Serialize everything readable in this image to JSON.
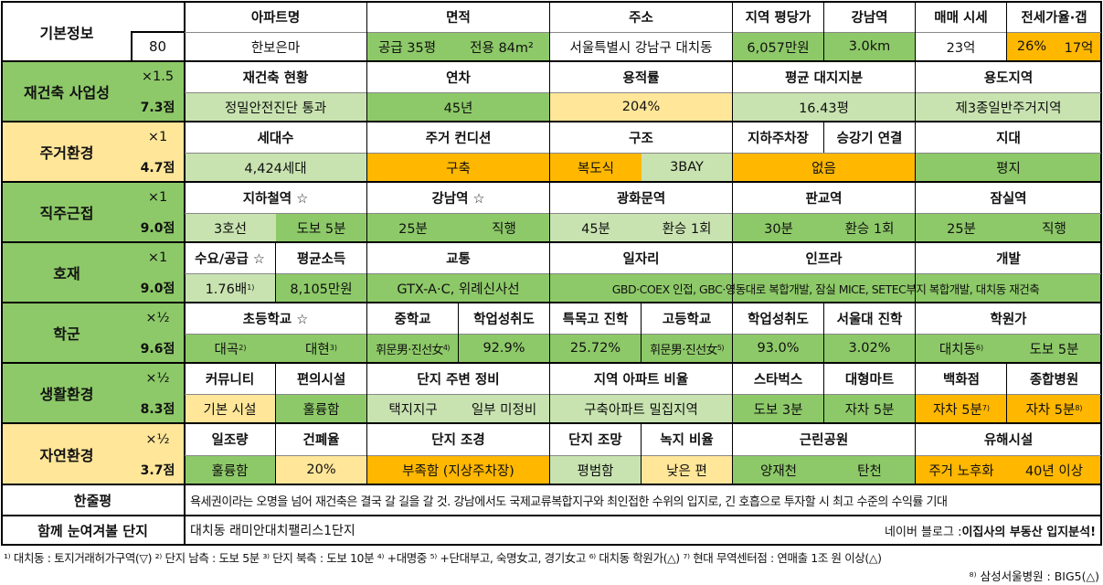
{
  "colors": {
    "green": "#8DC968",
    "lightgreen": "#C8E3B0",
    "yellow": "#FFE699",
    "orange": "#FFB700",
    "white": "#FFFFFF",
    "line": "#000000"
  },
  "basic": {
    "label": "기본정보",
    "score": "80",
    "h_apt": "아파트명",
    "v_apt": "한보은마",
    "h_area": "면적",
    "v_area_supply": "공급 35평",
    "v_area_excl": "전용 84m²",
    "h_addr": "주소",
    "v_addr": "서울특별시 강남구 대치동",
    "h_price": "지역 평당가",
    "v_price": "6,057만원",
    "h_gangnam": "강남역",
    "v_gangnam": "3.0km",
    "h_sale": "매매 시세",
    "v_sale": "23억",
    "h_jeonse": "전세가율·갭",
    "v_jeonse_rate": "26%",
    "v_gap": "17억"
  },
  "rebuild": {
    "label": "재건축 사업성",
    "mult": "×1.5",
    "score": "7.3점",
    "h_status": "재건축 현황",
    "v_status": "정밀안전진단 통과",
    "h_age": "연차",
    "v_age": "45년",
    "h_far": "용적률",
    "v_far": "204%",
    "h_land": "평균 대지지분",
    "v_land": "16.43평",
    "h_zone": "용도지역",
    "v_zone": "제3종일반주거지역"
  },
  "living": {
    "label": "주거환경",
    "mult": "×1",
    "score": "4.7점",
    "h_households": "세대수",
    "v_households": "4,424세대",
    "h_condition": "주거 컨디션",
    "v_condition": "구축",
    "h_structure": "구조",
    "v_corridor": "복도식",
    "v_bay": "3BAY",
    "h_parking": "지하주차장",
    "h_elevator": "승강기 연결",
    "v_parking": "없음",
    "h_terrain": "지대",
    "v_terrain": "평지"
  },
  "commute": {
    "label": "직주근접",
    "mult": "×1",
    "score": "9.0점",
    "h_subway": "지하철역 ☆",
    "v_subway_line": "3호선",
    "v_subway_walk": "도보 5분",
    "h_gangnam": "강남역 ☆",
    "v_gangnam_time": "25분",
    "v_gangnam_mode": "직행",
    "h_gwanghwamun": "광화문역",
    "v_gwanghwamun_time": "45분",
    "v_gwanghwamun_mode": "환승 1회",
    "h_pangyo": "판교역",
    "v_pangyo_time": "30분",
    "v_pangyo_mode": "환승 1회",
    "h_jamsil": "잠실역",
    "v_jamsil_time": "25분",
    "v_jamsil_mode": "직행"
  },
  "benefit": {
    "label": "호재",
    "mult": "×1",
    "score": "9.0점",
    "h_demand": "수요/공급 ☆",
    "v_demand": "1.76배",
    "v_demand_note": "1)",
    "h_income": "평균소득",
    "v_income": "8,105만원",
    "h_traffic": "교통",
    "v_traffic": "GTX-A·C, 위례신사선",
    "h_jobs": "일자리",
    "h_infra": "인프라",
    "h_dev": "개발",
    "v_dev": "GBD·COEX 인접, GBC·영동대로 복합개발, 잠실 MICE, SETEC부지 복합개발, 대치동 재건축"
  },
  "school": {
    "label": "학군",
    "mult": "×½",
    "score": "9.6점",
    "h_elem": "초등학교 ☆",
    "v_elem1": "대곡",
    "v_elem1_note": "2)",
    "v_elem2": "대현",
    "v_elem2_note": "3)",
    "h_middle": "중학교",
    "v_middle": "휘문男·진선女",
    "v_middle_note": "4)",
    "h_middle_ach": "학업성취도",
    "v_middle_ach": "92.9%",
    "h_special": "특목고 진학",
    "v_special": "25.72%",
    "h_high": "고등학교",
    "v_high": "휘문男·진선女",
    "v_high_note": "5)",
    "h_high_ach": "학업성취도",
    "v_high_ach": "93.0%",
    "h_snu": "서울대 진학",
    "v_snu": "3.02%",
    "h_academy": "학원가",
    "v_academy": "대치동",
    "v_academy_note": "6)",
    "v_academy_walk": "도보 5분"
  },
  "life": {
    "label": "생활환경",
    "mult": "×½",
    "score": "8.3점",
    "h_community": "커뮤니티",
    "v_community": "기본 시설",
    "h_convenience": "편의시설",
    "v_convenience": "훌륭함",
    "h_surround": "단지 주변 정비",
    "v_surround1": "택지지구",
    "v_surround2": "일부 미정비",
    "h_ratio": "지역 아파트 비율",
    "v_ratio": "구축아파트 밀집지역",
    "h_starbucks": "스타벅스",
    "v_starbucks": "도보 3분",
    "h_mart": "대형마트",
    "v_mart": "자차 5분",
    "h_dept": "백화점",
    "v_dept": "자차 5분",
    "v_dept_note": "7)",
    "h_hospital": "종합병원",
    "v_hospital": "자차 5분",
    "v_hospital_note": "8)"
  },
  "nature": {
    "label": "자연환경",
    "mult": "×½",
    "score": "3.7점",
    "h_sun": "일조량",
    "v_sun": "훌륭함",
    "h_bcr": "건폐율",
    "v_bcr": "20%",
    "h_landscape": "단지 조경",
    "v_landscape": "부족함 (지상주차장)",
    "h_view": "단지 조망",
    "v_view": "평범함",
    "h_green": "녹지 비율",
    "v_green": "낮은 편",
    "h_park": "근린공원",
    "v_park1": "양재천",
    "v_park2": "탄천",
    "h_hazard": "유해시설",
    "v_hazard1": "주거 노후화",
    "v_hazard2": "40년 이상"
  },
  "summary": {
    "label": "한줄평",
    "text": "욕세권이라는 오명을 넘어 재건축은 결국 갈 길을 갈 것. 강남에서도 국제교류복합지구와 최인접한 수위의 입지로, 긴 호흡으로 투자할 시 최고 수준의 수익률 기대"
  },
  "related": {
    "label": "함께 눈여겨볼 단지",
    "text": "대치동 래미안대치팰리스1단지",
    "blog_prefix": "네이버 블로그 : ",
    "blog_name": "이집사의 부동산 입지분석!"
  },
  "footnotes": {
    "line1": "¹⁾ 대치동 : 토지거래허가구역(▽) ²⁾ 단지 남측 : 도보 5분 ³⁾ 단지 북측 : 도보 10분 ⁴⁾ +대명중 ⁵⁾ +단대부고, 숙명女고, 경기女고 ⁶⁾ 대치동 학원가(△) ⁷⁾ 현대 무역센터점 : 연매출 1조 원 이상(△)",
    "line2": "⁸⁾ 삼성서울병원 : BIG5(△)"
  }
}
